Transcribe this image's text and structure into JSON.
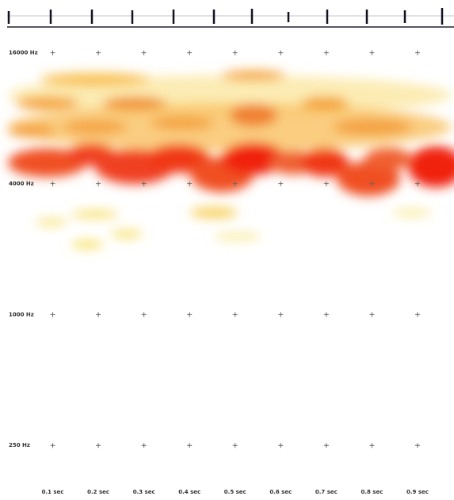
{
  "chart_data": {
    "type": "spectrogram",
    "xlim": [
      0,
      0.98
    ],
    "ylim": [
      150,
      20000
    ],
    "ylog": true,
    "xticks": [
      {
        "value": 0.1,
        "label": "0.1 sec"
      },
      {
        "value": 0.2,
        "label": "0.2 sec"
      },
      {
        "value": 0.3,
        "label": "0.3 sec"
      },
      {
        "value": 0.4,
        "label": "0.4 sec"
      },
      {
        "value": 0.5,
        "label": "0.5 sec"
      },
      {
        "value": 0.6,
        "label": "0.6 sec"
      },
      {
        "value": 0.7,
        "label": "0.7 sec"
      },
      {
        "value": 0.8,
        "label": "0.8 sec"
      },
      {
        "value": 0.9,
        "label": "0.9 sec"
      }
    ],
    "yticks": [
      {
        "value": 16000,
        "label": "16000 Hz"
      },
      {
        "value": 4000,
        "label": "4000 Hz"
      },
      {
        "value": 1000,
        "label": "1000 Hz"
      },
      {
        "value": 250,
        "label": "250 Hz"
      }
    ]
  }
}
